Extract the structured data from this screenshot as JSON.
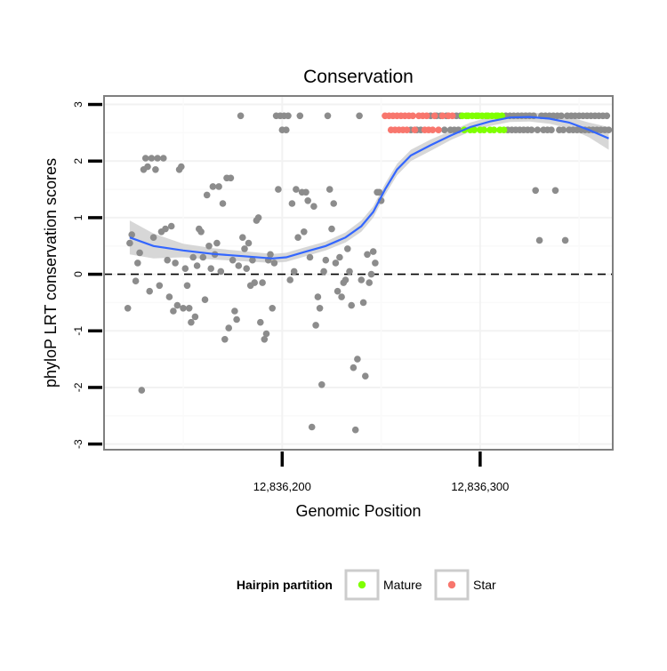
{
  "chart_data": {
    "type": "scatter",
    "title": "Conservation",
    "xlabel": "Genomic Position",
    "ylabel": "phyloP LRT conservation scores",
    "xlim": [
      12836110,
      12836367
    ],
    "ylim": [
      -3.1,
      3.15
    ],
    "x_ticks": [
      {
        "value": 12836200,
        "label": "12,836,200"
      },
      {
        "value": 12836300,
        "label": "12,836,300"
      }
    ],
    "y_ticks": [
      {
        "value": 3,
        "label": "3"
      },
      {
        "value": 2,
        "label": "2"
      },
      {
        "value": 1,
        "label": "1"
      },
      {
        "value": 0,
        "label": "0"
      },
      {
        "value": -1,
        "label": "-1"
      },
      {
        "value": -2,
        "label": "-2"
      },
      {
        "value": -3,
        "label": "-3"
      }
    ],
    "reference_line": {
      "y": 0,
      "style": "dashed"
    },
    "legend": {
      "title": "Hairpin partition",
      "placement": "bottom",
      "entries": [
        {
          "label": "Mature",
          "color": "#7fff00"
        },
        {
          "label": "Star",
          "color": "#f8766d"
        }
      ]
    },
    "colors": {
      "points": "#8c8c8c",
      "mature": "#7fff00",
      "star": "#f8766d",
      "smooth": "#3366ff",
      "band": "#d3d3d3",
      "panel_border": "#7f7f7f",
      "grid": "#f2f2f2"
    },
    "series": [
      {
        "name": "Other",
        "points": [
          [
            12836123,
            0.55
          ],
          [
            12836124,
            0.7
          ],
          [
            12836122,
            -0.6
          ],
          [
            12836126,
            -0.12
          ],
          [
            12836127,
            0.2
          ],
          [
            12836128,
            0.38
          ],
          [
            12836129,
            -2.05
          ],
          [
            12836130,
            1.85
          ],
          [
            12836131,
            2.05
          ],
          [
            12836132,
            1.9
          ],
          [
            12836133,
            -0.3
          ],
          [
            12836134,
            2.05
          ],
          [
            12836135,
            0.65
          ],
          [
            12836136,
            1.85
          ],
          [
            12836137,
            2.05
          ],
          [
            12836138,
            -0.2
          ],
          [
            12836139,
            0.75
          ],
          [
            12836140,
            2.05
          ],
          [
            12836141,
            0.8
          ],
          [
            12836142,
            0.25
          ],
          [
            12836143,
            -0.4
          ],
          [
            12836144,
            0.85
          ],
          [
            12836145,
            -0.65
          ],
          [
            12836146,
            0.2
          ],
          [
            12836147,
            -0.55
          ],
          [
            12836148,
            1.85
          ],
          [
            12836149,
            1.9
          ],
          [
            12836150,
            -0.6
          ],
          [
            12836151,
            0.1
          ],
          [
            12836152,
            -0.2
          ],
          [
            12836153,
            -0.6
          ],
          [
            12836154,
            -0.85
          ],
          [
            12836155,
            0.3
          ],
          [
            12836156,
            -0.75
          ],
          [
            12836157,
            0.15
          ],
          [
            12836158,
            0.8
          ],
          [
            12836159,
            0.75
          ],
          [
            12836160,
            0.3
          ],
          [
            12836161,
            -0.45
          ],
          [
            12836162,
            1.4
          ],
          [
            12836163,
            0.5
          ],
          [
            12836164,
            0.1
          ],
          [
            12836165,
            1.55
          ],
          [
            12836166,
            0.35
          ],
          [
            12836167,
            0.55
          ],
          [
            12836168,
            1.55
          ],
          [
            12836169,
            0.05
          ],
          [
            12836170,
            1.25
          ],
          [
            12836171,
            -1.15
          ],
          [
            12836172,
            1.7
          ],
          [
            12836173,
            -0.95
          ],
          [
            12836174,
            1.7
          ],
          [
            12836175,
            0.25
          ],
          [
            12836176,
            -0.65
          ],
          [
            12836177,
            -0.8
          ],
          [
            12836178,
            0.15
          ],
          [
            12836179,
            2.8
          ],
          [
            12836180,
            0.65
          ],
          [
            12836181,
            0.45
          ],
          [
            12836182,
            0.1
          ],
          [
            12836183,
            0.55
          ],
          [
            12836184,
            -0.2
          ],
          [
            12836185,
            0.25
          ],
          [
            12836186,
            -0.15
          ],
          [
            12836187,
            0.95
          ],
          [
            12836188,
            1.0
          ],
          [
            12836189,
            -0.85
          ],
          [
            12836190,
            -0.15
          ],
          [
            12836191,
            -1.15
          ],
          [
            12836192,
            -1.05
          ],
          [
            12836193,
            0.25
          ],
          [
            12836194,
            0.35
          ],
          [
            12836195,
            -0.6
          ],
          [
            12836196,
            0.2
          ],
          [
            12836197,
            2.8
          ],
          [
            12836198,
            1.5
          ],
          [
            12836199,
            2.8
          ],
          [
            12836200,
            2.55
          ],
          [
            12836201,
            2.8
          ],
          [
            12836202,
            2.55
          ],
          [
            12836203,
            2.8
          ],
          [
            12836204,
            -0.1
          ],
          [
            12836205,
            1.25
          ],
          [
            12836206,
            0.05
          ],
          [
            12836207,
            1.5
          ],
          [
            12836208,
            0.65
          ],
          [
            12836209,
            2.8
          ],
          [
            12836210,
            1.45
          ],
          [
            12836211,
            0.75
          ],
          [
            12836212,
            1.45
          ],
          [
            12836213,
            1.3
          ],
          [
            12836214,
            0.3
          ],
          [
            12836215,
            -2.7
          ],
          [
            12836216,
            1.2
          ],
          [
            12836217,
            -0.9
          ],
          [
            12836218,
            -0.4
          ],
          [
            12836219,
            -0.6
          ],
          [
            12836220,
            -1.95
          ],
          [
            12836221,
            0.05
          ],
          [
            12836222,
            0.25
          ],
          [
            12836223,
            2.8
          ],
          [
            12836224,
            1.5
          ],
          [
            12836225,
            0.8
          ],
          [
            12836226,
            1.25
          ],
          [
            12836227,
            0.2
          ],
          [
            12836228,
            -0.3
          ],
          [
            12836229,
            0.3
          ],
          [
            12836230,
            -0.4
          ],
          [
            12836231,
            -0.15
          ],
          [
            12836232,
            -0.1
          ],
          [
            12836233,
            0.45
          ],
          [
            12836234,
            0.05
          ],
          [
            12836235,
            -0.55
          ],
          [
            12836236,
            -1.65
          ],
          [
            12836237,
            -2.75
          ],
          [
            12836238,
            -1.5
          ],
          [
            12836239,
            2.8
          ],
          [
            12836240,
            -0.1
          ],
          [
            12836241,
            -0.5
          ],
          [
            12836242,
            -1.8
          ],
          [
            12836243,
            0.35
          ],
          [
            12836244,
            -0.15
          ],
          [
            12836245,
            0.0
          ],
          [
            12836246,
            0.4
          ],
          [
            12836247,
            0.2
          ],
          [
            12836248,
            1.45
          ],
          [
            12836249,
            1.45
          ],
          [
            12836250,
            1.3
          ],
          [
            12836265,
            2.55
          ],
          [
            12836268,
            2.55
          ],
          [
            12836270,
            2.55
          ],
          [
            12836275,
            2.8
          ],
          [
            12836278,
            2.8
          ],
          [
            12836280,
            2.8
          ],
          [
            12836282,
            2.55
          ],
          [
            12836283,
            2.8
          ],
          [
            12836285,
            2.55
          ],
          [
            12836287,
            2.55
          ],
          [
            12836288,
            2.8
          ],
          [
            12836289,
            2.55
          ],
          [
            12836290,
            2.8
          ],
          [
            12836313,
            2.8
          ],
          [
            12836314,
            2.55
          ],
          [
            12836315,
            2.8
          ],
          [
            12836316,
            2.55
          ],
          [
            12836317,
            2.8
          ],
          [
            12836318,
            2.55
          ],
          [
            12836319,
            2.8
          ],
          [
            12836320,
            2.55
          ],
          [
            12836321,
            2.8
          ],
          [
            12836322,
            2.55
          ],
          [
            12836323,
            2.8
          ],
          [
            12836324,
            2.55
          ],
          [
            12836325,
            2.8
          ],
          [
            12836326,
            2.55
          ],
          [
            12836327,
            2.8
          ],
          [
            12836328,
            1.48
          ],
          [
            12836329,
            2.55
          ],
          [
            12836330,
            0.6
          ],
          [
            12836331,
            2.8
          ],
          [
            12836332,
            2.55
          ],
          [
            12836333,
            2.8
          ],
          [
            12836334,
            2.55
          ],
          [
            12836335,
            2.8
          ],
          [
            12836336,
            2.55
          ],
          [
            12836337,
            2.8
          ],
          [
            12836338,
            1.48
          ],
          [
            12836339,
            2.8
          ],
          [
            12836340,
            2.55
          ],
          [
            12836341,
            2.8
          ],
          [
            12836342,
            2.55
          ],
          [
            12836343,
            0.6
          ],
          [
            12836344,
            2.8
          ],
          [
            12836345,
            2.55
          ],
          [
            12836346,
            2.8
          ],
          [
            12836347,
            2.55
          ],
          [
            12836348,
            2.8
          ],
          [
            12836349,
            2.55
          ],
          [
            12836350,
            2.8
          ],
          [
            12836351,
            2.55
          ],
          [
            12836352,
            2.8
          ],
          [
            12836353,
            2.55
          ],
          [
            12836354,
            2.8
          ],
          [
            12836355,
            2.55
          ],
          [
            12836356,
            2.8
          ],
          [
            12836357,
            2.55
          ],
          [
            12836358,
            2.8
          ],
          [
            12836359,
            2.55
          ],
          [
            12836360,
            2.8
          ],
          [
            12836361,
            2.55
          ],
          [
            12836362,
            2.8
          ],
          [
            12836363,
            2.55
          ],
          [
            12836364,
            2.8
          ],
          [
            12836365,
            2.55
          ]
        ]
      },
      {
        "name": "Star",
        "points": [
          [
            12836252,
            2.8
          ],
          [
            12836254,
            2.8
          ],
          [
            12836255,
            2.55
          ],
          [
            12836256,
            2.8
          ],
          [
            12836257,
            2.55
          ],
          [
            12836258,
            2.8
          ],
          [
            12836259,
            2.55
          ],
          [
            12836260,
            2.8
          ],
          [
            12836261,
            2.55
          ],
          [
            12836262,
            2.8
          ],
          [
            12836263,
            2.55
          ],
          [
            12836264,
            2.8
          ],
          [
            12836266,
            2.8
          ],
          [
            12836267,
            2.55
          ],
          [
            12836269,
            2.8
          ],
          [
            12836271,
            2.8
          ],
          [
            12836272,
            2.55
          ],
          [
            12836273,
            2.8
          ],
          [
            12836274,
            2.55
          ],
          [
            12836276,
            2.55
          ],
          [
            12836277,
            2.8
          ],
          [
            12836279,
            2.55
          ],
          [
            12836281,
            2.8
          ],
          [
            12836284,
            2.8
          ],
          [
            12836286,
            2.8
          ]
        ]
      },
      {
        "name": "Mature",
        "points": [
          [
            12836291,
            2.8
          ],
          [
            12836292,
            2.55
          ],
          [
            12836293,
            2.8
          ],
          [
            12836294,
            2.8
          ],
          [
            12836295,
            2.55
          ],
          [
            12836296,
            2.8
          ],
          [
            12836297,
            2.55
          ],
          [
            12836298,
            2.8
          ],
          [
            12836299,
            2.8
          ],
          [
            12836300,
            2.55
          ],
          [
            12836301,
            2.8
          ],
          [
            12836302,
            2.55
          ],
          [
            12836303,
            2.8
          ],
          [
            12836304,
            2.8
          ],
          [
            12836305,
            2.55
          ],
          [
            12836306,
            2.8
          ],
          [
            12836307,
            2.55
          ],
          [
            12836308,
            2.8
          ],
          [
            12836309,
            2.8
          ],
          [
            12836310,
            2.55
          ],
          [
            12836311,
            2.8
          ],
          [
            12836312,
            2.55
          ]
        ]
      }
    ],
    "smooth": {
      "name": "loess fit",
      "points": [
        [
          12836123,
          0.65
        ],
        [
          12836135,
          0.5
        ],
        [
          12836150,
          0.42
        ],
        [
          12836165,
          0.36
        ],
        [
          12836180,
          0.32
        ],
        [
          12836195,
          0.28
        ],
        [
          12836202,
          0.3
        ],
        [
          12836212,
          0.4
        ],
        [
          12836222,
          0.5
        ],
        [
          12836232,
          0.65
        ],
        [
          12836240,
          0.85
        ],
        [
          12836246,
          1.1
        ],
        [
          12836252,
          1.5
        ],
        [
          12836258,
          1.85
        ],
        [
          12836265,
          2.1
        ],
        [
          12836275,
          2.28
        ],
        [
          12836285,
          2.45
        ],
        [
          12836295,
          2.6
        ],
        [
          12836305,
          2.7
        ],
        [
          12836315,
          2.77
        ],
        [
          12836325,
          2.78
        ],
        [
          12836335,
          2.75
        ],
        [
          12836345,
          2.68
        ],
        [
          12836355,
          2.55
        ],
        [
          12836365,
          2.4
        ]
      ],
      "band_halfwidth": [
        0.3,
        0.22,
        0.12,
        0.1,
        0.09,
        0.08,
        0.08,
        0.08,
        0.08,
        0.09,
        0.1,
        0.1,
        0.1,
        0.1,
        0.1,
        0.1,
        0.08,
        0.08,
        0.08,
        0.08,
        0.08,
        0.09,
        0.1,
        0.13,
        0.2
      ]
    }
  }
}
